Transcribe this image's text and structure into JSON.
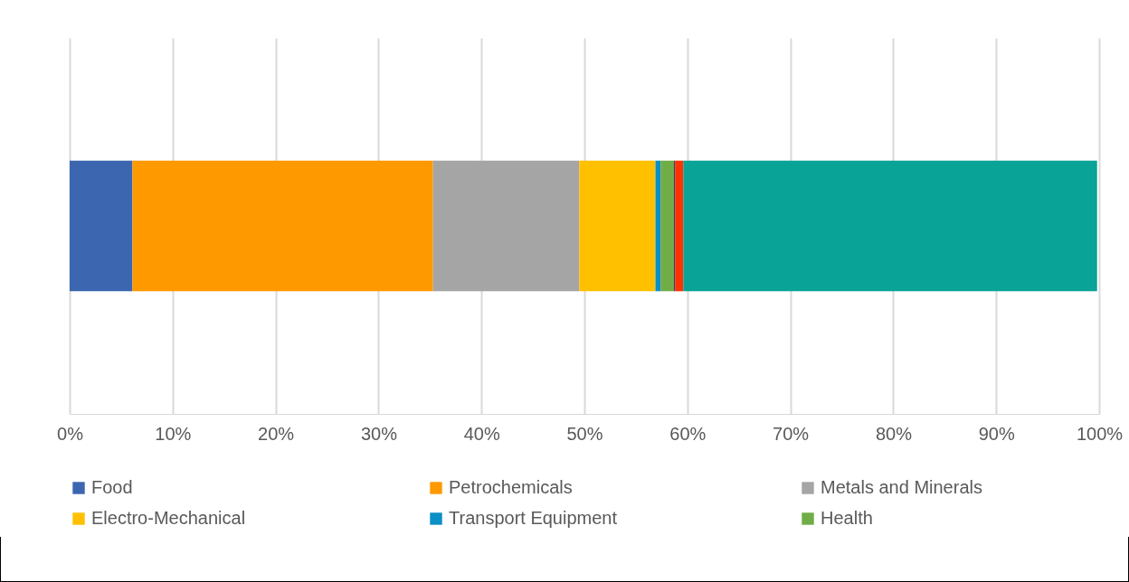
{
  "chart_data": {
    "type": "bar",
    "orientation": "horizontal",
    "stacked": true,
    "categories": [
      null
    ],
    "series": [
      {
        "name": "Food",
        "color": "#3c67b0",
        "values": [
          6.1
        ]
      },
      {
        "name": "Petrochemicals",
        "color": "#ff9900",
        "values": [
          29.2
        ]
      },
      {
        "name": "Metals and Minerals",
        "color": "#a5a5a5",
        "values": [
          14.2
        ]
      },
      {
        "name": "Electro-Mechanical",
        "color": "#ffc000",
        "values": [
          7.4
        ]
      },
      {
        "name": "Transport Equipment",
        "color": "#0a8fc6",
        "values": [
          0.5
        ]
      },
      {
        "name": "Health",
        "color": "#70ad47",
        "values": [
          1.3
        ]
      },
      {
        "color": "#3a3a8a",
        "values": [
          0.1
        ]
      },
      {
        "color": "#ff3300",
        "values": [
          0.8
        ]
      },
      {
        "color": "#0aa397",
        "values": [
          40.2
        ]
      }
    ],
    "xlim": [
      0,
      100
    ],
    "xticks": [
      {
        "value": 0,
        "label": "0%"
      },
      {
        "value": 10,
        "label": "10%"
      },
      {
        "value": 20,
        "label": "20%"
      },
      {
        "value": 30,
        "label": "30%"
      },
      {
        "value": 40,
        "label": "40%"
      },
      {
        "value": 50,
        "label": "50%"
      },
      {
        "value": 60,
        "label": "60%"
      },
      {
        "value": 70,
        "label": "70%"
      },
      {
        "value": 80,
        "label": "80%"
      },
      {
        "value": 90,
        "label": "90%"
      },
      {
        "value": 100,
        "label": "100%"
      }
    ],
    "grid": "x",
    "legend": "bottom"
  }
}
